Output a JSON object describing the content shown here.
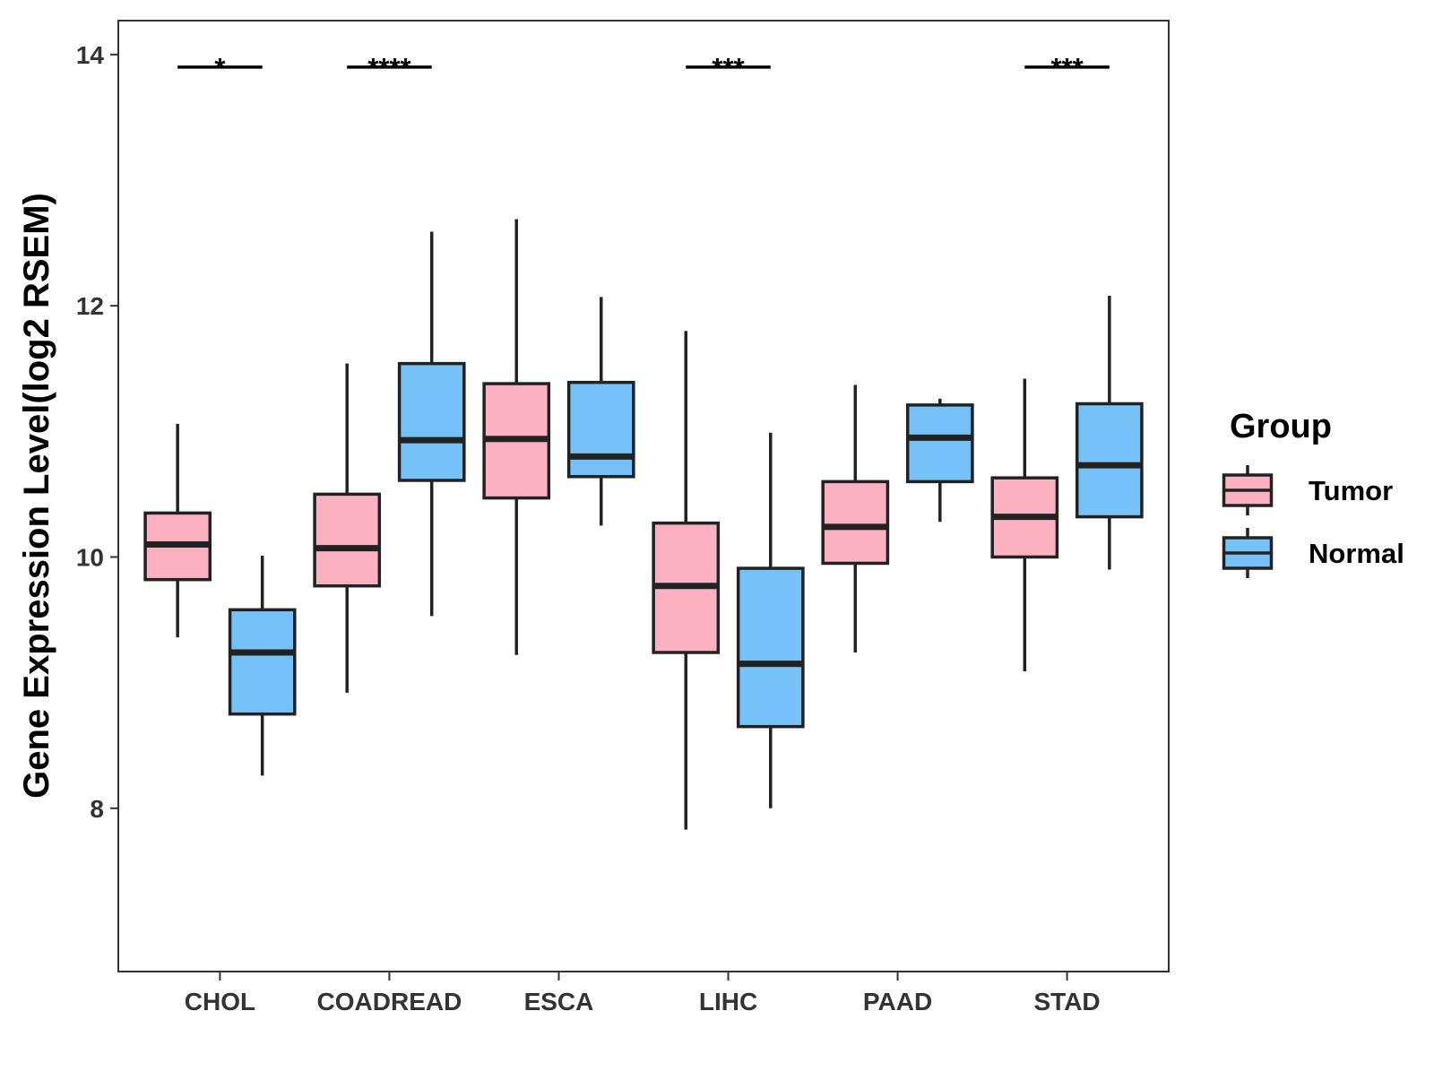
{
  "chart_data": {
    "type": "box",
    "title": "",
    "xlabel": "",
    "ylabel": "Gene Expression Level(log2 RSEM)",
    "ylim": [
      6.7,
      14.27
    ],
    "yticks": [
      8,
      10,
      12,
      14
    ],
    "ytick_labels": [
      "8",
      "10",
      "12",
      "14"
    ],
    "grid": false,
    "categories": [
      "CHOL",
      "COADREAD",
      "ESCA",
      "LIHC",
      "PAAD",
      "STAD"
    ],
    "legend": {
      "title": "Group",
      "position": "right",
      "entries": [
        {
          "label": "Tumor",
          "color": "#FBB1C2"
        },
        {
          "label": "Normal",
          "color": "#76C2F8"
        }
      ]
    },
    "series": [
      {
        "name": "Tumor",
        "color": "#FBB1C2",
        "boxes": [
          {
            "category": "CHOL",
            "whisker_low": 9.36,
            "q1": 9.82,
            "median": 10.1,
            "q3": 10.35,
            "whisker_high": 11.06
          },
          {
            "category": "COADREAD",
            "whisker_low": 8.92,
            "q1": 9.77,
            "median": 10.07,
            "q3": 10.5,
            "whisker_high": 11.54
          },
          {
            "category": "ESCA",
            "whisker_low": 9.22,
            "q1": 10.47,
            "median": 10.94,
            "q3": 11.38,
            "whisker_high": 12.69
          },
          {
            "category": "LIHC",
            "whisker_low": 7.83,
            "q1": 9.24,
            "median": 9.77,
            "q3": 10.27,
            "whisker_high": 11.8
          },
          {
            "category": "PAAD",
            "whisker_low": 9.24,
            "q1": 9.95,
            "median": 10.24,
            "q3": 10.6,
            "whisker_high": 11.37
          },
          {
            "category": "STAD",
            "whisker_low": 9.09,
            "q1": 10.0,
            "median": 10.32,
            "q3": 10.63,
            "whisker_high": 11.42
          }
        ]
      },
      {
        "name": "Normal",
        "color": "#76C2F8",
        "boxes": [
          {
            "category": "CHOL",
            "whisker_low": 8.26,
            "q1": 8.75,
            "median": 9.24,
            "q3": 9.58,
            "whisker_high": 10.01
          },
          {
            "category": "COADREAD",
            "whisker_low": 9.53,
            "q1": 10.61,
            "median": 10.93,
            "q3": 11.54,
            "whisker_high": 12.59
          },
          {
            "category": "ESCA",
            "whisker_low": 10.25,
            "q1": 10.64,
            "median": 10.8,
            "q3": 11.39,
            "whisker_high": 12.07
          },
          {
            "category": "LIHC",
            "whisker_low": 8.0,
            "q1": 8.65,
            "median": 9.15,
            "q3": 9.91,
            "whisker_high": 10.99
          },
          {
            "category": "PAAD",
            "whisker_low": 10.28,
            "q1": 10.6,
            "median": 10.95,
            "q3": 11.21,
            "whisker_high": 11.26
          },
          {
            "category": "STAD",
            "whisker_low": 9.9,
            "q1": 10.32,
            "median": 10.73,
            "q3": 11.22,
            "whisker_high": 12.08
          }
        ]
      }
    ],
    "annotations": [
      {
        "category": "CHOL",
        "label": "*"
      },
      {
        "category": "COADREAD",
        "label": "****"
      },
      {
        "category": "LIHC",
        "label": "***"
      },
      {
        "category": "STAD",
        "label": "***"
      }
    ]
  }
}
